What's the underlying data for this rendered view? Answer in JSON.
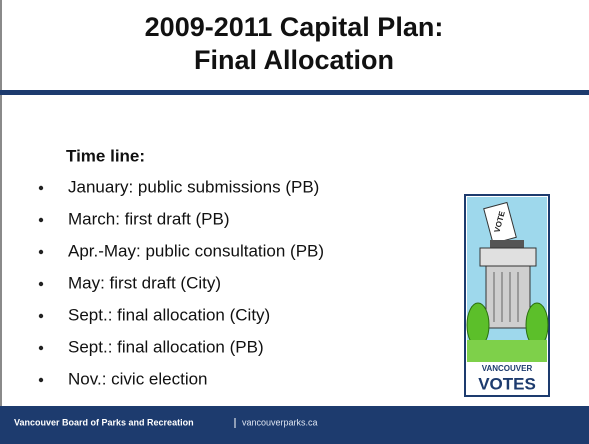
{
  "title": {
    "line1": "2009-2011 Capital Plan:",
    "line2": "Final Allocation"
  },
  "heading": "Time line:",
  "bullets": [
    "January: public submissions (PB)",
    "March: first draft (PB)",
    "Apr.-May: public consultation (PB)",
    "May: first draft (City)",
    "Sept.: final allocation (City)",
    "Sept.: final allocation (PB)",
    "Nov.: civic election"
  ],
  "logo": {
    "ballot": "VOTE",
    "top": "VANCOUVER",
    "bottom": "VOTES"
  },
  "footer": {
    "organization": "Vancouver Board of Parks and Recreation",
    "website": "vancouverparks.ca"
  }
}
